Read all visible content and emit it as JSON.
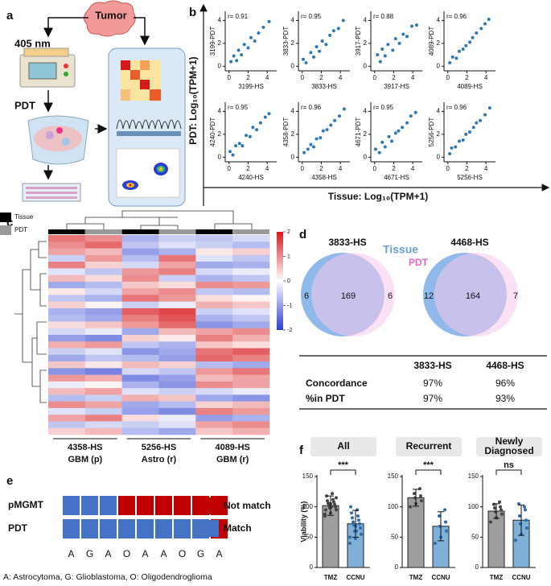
{
  "panel_a": {
    "letter": "a",
    "tumor": "Tumor",
    "laser": "405 nm",
    "step": "PDT"
  },
  "panel_b": {
    "letter": "b",
    "ylabel": "PDT: Log₁₀(TPM+1)",
    "xlabel": "Tissue: Log₁₀(TPM+1)",
    "chart_data": [
      {
        "type": "scatter",
        "r_label": "r= 0.91",
        "xlabel": "3199-HS",
        "ylabel": "3199-PDT",
        "color": "#2e78b7",
        "xlim": [
          -0.4,
          5
        ],
        "ylim": [
          -0.4,
          4.8
        ],
        "xticks": [
          0,
          2,
          4
        ],
        "yticks": [
          0,
          2,
          4
        ],
        "x": [
          0.2,
          0.5,
          0.8,
          1.0,
          1.3,
          1.6,
          2.0,
          2.3,
          2.7,
          3.1,
          3.6,
          4.2
        ],
        "y": [
          0.4,
          0.9,
          0.5,
          1.4,
          1.0,
          1.9,
          1.6,
          2.5,
          2.2,
          2.9,
          3.4,
          3.9
        ]
      },
      {
        "type": "scatter",
        "r_label": "r= 0.95",
        "xlabel": "3833-HS",
        "ylabel": "3833-PDT",
        "color": "#2e78b7",
        "xlim": [
          -0.4,
          5
        ],
        "ylim": [
          -0.4,
          4.8
        ],
        "xticks": [
          0,
          2,
          4
        ],
        "yticks": [
          0,
          2,
          4
        ],
        "x": [
          0.1,
          0.4,
          0.9,
          1.2,
          1.5,
          1.8,
          2.1,
          2.5,
          2.9,
          3.3,
          3.8,
          4.3
        ],
        "y": [
          0.6,
          0.3,
          1.2,
          0.8,
          1.7,
          1.3,
          2.2,
          1.9,
          2.7,
          3.1,
          3.3,
          4.0
        ]
      },
      {
        "type": "scatter",
        "r_label": "r= 0.88",
        "xlabel": "3917-HS",
        "ylabel": "3917-PDT",
        "color": "#2e78b7",
        "xlim": [
          -0.4,
          5
        ],
        "ylim": [
          -0.4,
          4.8
        ],
        "xticks": [
          0,
          2,
          4
        ],
        "yticks": [
          0,
          2,
          4
        ],
        "x": [
          0.3,
          0.6,
          0.8,
          1.1,
          1.4,
          1.9,
          2.2,
          2.6,
          3.0,
          3.4,
          3.9,
          4.4
        ],
        "y": [
          1.0,
          0.4,
          1.5,
          0.9,
          1.9,
          1.4,
          2.4,
          2.0,
          2.8,
          2.6,
          3.5,
          3.6
        ]
      },
      {
        "type": "scatter",
        "r_label": "r= 0.96",
        "xlabel": "4089-HS",
        "ylabel": "4089-PDT",
        "color": "#2e78b7",
        "xlim": [
          -0.4,
          5
        ],
        "ylim": [
          -0.4,
          4.8
        ],
        "xticks": [
          0,
          2,
          4
        ],
        "yticks": [
          0,
          2,
          4
        ],
        "x": [
          0.2,
          0.5,
          0.9,
          1.2,
          1.6,
          1.9,
          2.3,
          2.6,
          3.0,
          3.5,
          3.9,
          4.3
        ],
        "y": [
          0.3,
          0.8,
          0.7,
          1.3,
          1.5,
          1.8,
          2.1,
          2.5,
          2.9,
          3.3,
          3.7,
          4.1
        ]
      },
      {
        "type": "scatter",
        "r_label": "r= 0.95",
        "xlabel": "4240-HS",
        "ylabel": "4240-PDT",
        "color": "#2e78b7",
        "xlim": [
          -0.4,
          5
        ],
        "ylim": [
          -0.4,
          4.8
        ],
        "xticks": [
          0,
          2,
          4
        ],
        "yticks": [
          0,
          2,
          4
        ],
        "x": [
          0.1,
          0.4,
          0.7,
          1.1,
          1.4,
          1.8,
          2.2,
          2.5,
          2.9,
          3.3,
          3.8,
          4.2
        ],
        "y": [
          0.5,
          0.2,
          1.0,
          1.2,
          1.0,
          1.9,
          1.8,
          2.6,
          2.4,
          3.0,
          3.5,
          3.8
        ]
      },
      {
        "type": "scatter",
        "r_label": "r= 0.96",
        "xlabel": "4358-HS",
        "ylabel": "4358-PDT",
        "color": "#2e78b7",
        "xlim": [
          -0.4,
          5
        ],
        "ylim": [
          -0.4,
          4.8
        ],
        "xticks": [
          0,
          2,
          4
        ],
        "yticks": [
          0,
          2,
          4
        ],
        "x": [
          0.2,
          0.6,
          0.9,
          1.2,
          1.5,
          1.9,
          2.2,
          2.6,
          3.0,
          3.4,
          3.9,
          4.4
        ],
        "y": [
          0.4,
          0.7,
          1.1,
          0.9,
          1.6,
          1.7,
          2.3,
          2.4,
          2.8,
          3.2,
          3.6,
          4.2
        ]
      },
      {
        "type": "scatter",
        "r_label": "r= 0.95",
        "xlabel": "4671-HS",
        "ylabel": "4671-PDT",
        "color": "#2e78b7",
        "xlim": [
          -0.4,
          5
        ],
        "ylim": [
          -0.4,
          4.8
        ],
        "xticks": [
          0,
          2,
          4
        ],
        "yticks": [
          0,
          2,
          4
        ],
        "x": [
          0.1,
          0.5,
          0.8,
          1.1,
          1.5,
          1.8,
          2.2,
          2.5,
          2.9,
          3.4,
          3.8,
          4.3
        ],
        "y": [
          0.7,
          0.4,
          1.3,
          0.9,
          1.8,
          1.4,
          2.1,
          2.3,
          2.6,
          3.0,
          3.6,
          3.9
        ]
      },
      {
        "type": "scatter",
        "r_label": "r= 0.96",
        "xlabel": "5256-HS",
        "ylabel": "5256-PDT",
        "color": "#2e78b7",
        "xlim": [
          -0.4,
          5
        ],
        "ylim": [
          -0.4,
          4.8
        ],
        "xticks": [
          0,
          2,
          4
        ],
        "yticks": [
          0,
          2,
          4
        ],
        "x": [
          0.2,
          0.4,
          0.8,
          1.2,
          1.6,
          1.9,
          2.3,
          2.7,
          3.0,
          3.4,
          3.9,
          4.4
        ],
        "y": [
          0.3,
          0.8,
          0.9,
          1.4,
          1.5,
          2.0,
          2.2,
          2.6,
          3.0,
          3.2,
          3.7,
          4.3
        ]
      }
    ]
  },
  "panel_c": {
    "letter": "c",
    "legend": [
      {
        "name": "Tissue",
        "color": "#000000"
      },
      {
        "name": "PDT",
        "color": "#999999"
      }
    ],
    "chart_data": {
      "type": "heatmap",
      "columns": [
        "Tissue",
        "PDT",
        "Tissue",
        "PDT",
        "Tissue",
        "PDT"
      ],
      "clim": [
        -2,
        2
      ],
      "cticks": [
        2,
        1,
        0,
        -1,
        -2
      ],
      "groups": [
        {
          "sample": "4358-HS",
          "label": "GBM (p)"
        },
        {
          "sample": "5256-HS",
          "label": "Astro (r)"
        },
        {
          "sample": "4089-HS",
          "label": "GBM (r)"
        }
      ],
      "values": [
        [
          1.2,
          1.0,
          -0.8,
          -0.5,
          -0.6,
          -0.4
        ],
        [
          1.0,
          1.3,
          -0.6,
          -0.3,
          -0.5,
          -0.7
        ],
        [
          0.8,
          0.6,
          -1.0,
          -0.8,
          0.2,
          0.4
        ],
        [
          -0.5,
          0.9,
          -0.7,
          1.2,
          -0.3,
          -0.6
        ],
        [
          1.1,
          0.4,
          -0.4,
          0.8,
          -0.9,
          -0.8
        ],
        [
          -0.3,
          -0.6,
          0.9,
          1.1,
          -0.4,
          -0.2
        ],
        [
          0.6,
          0.3,
          1.0,
          -0.5,
          -0.8,
          -0.6
        ],
        [
          -0.9,
          -0.7,
          0.5,
          0.3,
          1.0,
          0.9
        ],
        [
          0.2,
          -0.4,
          0.8,
          1.0,
          -0.6,
          -0.7
        ],
        [
          -0.6,
          -0.8,
          1.2,
          0.9,
          0.3,
          0.1
        ],
        [
          0.4,
          0.1,
          -0.5,
          -0.2,
          0.7,
          0.5
        ],
        [
          -0.8,
          -1.0,
          1.4,
          1.6,
          -0.5,
          -0.3
        ],
        [
          -0.7,
          -0.9,
          1.1,
          1.5,
          -0.8,
          -0.6
        ],
        [
          0.3,
          0.5,
          0.9,
          1.3,
          -1.1,
          -0.9
        ],
        [
          -0.4,
          -0.2,
          -0.9,
          0.6,
          0.8,
          1.0
        ],
        [
          -1.0,
          -1.2,
          0.4,
          0.2,
          1.1,
          0.7
        ],
        [
          0.7,
          0.9,
          -0.6,
          -0.8,
          0.5,
          0.3
        ],
        [
          -0.5,
          -0.3,
          -1.1,
          -0.9,
          1.2,
          1.4
        ],
        [
          -0.9,
          -0.6,
          -0.7,
          -1.0,
          1.3,
          1.1
        ],
        [
          0.5,
          0.2,
          0.6,
          0.4,
          -0.7,
          -0.9
        ],
        [
          -1.1,
          -1.3,
          -0.4,
          -0.6,
          0.9,
          1.2
        ],
        [
          0.9,
          0.7,
          -1.2,
          -1.0,
          0.6,
          0.8
        ],
        [
          -0.2,
          0.1,
          -0.8,
          -1.1,
          1.0,
          0.8
        ],
        [
          0.6,
          0.8,
          -0.3,
          -0.5,
          -0.4,
          -0.2
        ],
        [
          -0.7,
          -0.5,
          0.7,
          0.5,
          -0.9,
          -1.1
        ],
        [
          1.0,
          0.8,
          -0.9,
          -0.7,
          0.4,
          0.6
        ],
        [
          -0.3,
          -0.5,
          -1.0,
          -1.2,
          1.1,
          0.9
        ],
        [
          0.8,
          1.1,
          0.3,
          -0.2,
          -1.0,
          -0.8
        ],
        [
          -0.6,
          -0.4,
          -0.5,
          -0.3,
          0.8,
          1.0
        ],
        [
          0.4,
          0.6,
          -0.7,
          -0.9,
          0.5,
          0.7
        ]
      ]
    }
  },
  "panel_d": {
    "letter": "d",
    "tissue": "Tissue",
    "pdt": "PDT",
    "venns": [
      {
        "sample": "3833-HS",
        "only_tissue": 6,
        "both": 169,
        "only_pdt": 6
      },
      {
        "sample": "4468-HS",
        "only_tissue": 12,
        "both": 164,
        "only_pdt": 7
      }
    ],
    "table": {
      "columns": [
        "3833-HS",
        "4468-HS"
      ],
      "rows": [
        [
          "Concordance",
          "97%",
          "96%"
        ],
        [
          "%in PDT",
          "97%",
          "93%"
        ]
      ]
    }
  },
  "panel_e": {
    "letter": "e",
    "legend": [
      {
        "name": "Not match",
        "color": "#c00000"
      },
      {
        "name": "Match",
        "color": "#4472c4"
      }
    ],
    "rows": [
      {
        "label": "pMGMT",
        "cells": [
          "Match",
          "Match",
          "Match",
          "Not match",
          "Not match",
          "Not match",
          "Not match",
          "Not match",
          "Not match"
        ]
      },
      {
        "label": "PDT",
        "cells": [
          "Match",
          "Match",
          "Match",
          "Match",
          "Match",
          "Match",
          "Match",
          "Match",
          "Not match"
        ]
      }
    ],
    "letters": [
      "A",
      "G",
      "A",
      "O",
      "A",
      "A",
      "O",
      "G",
      "A"
    ],
    "footnote": "A: Astrocytoma, G: Glioblastoma, O: Oligodendroglioma"
  },
  "panel_f": {
    "letter": "f",
    "ylabel": "Viability (%)",
    "ylim": [
      0,
      150
    ],
    "yticks": [
      0,
      50,
      100,
      150
    ],
    "colors": [
      "#9e9e9e",
      "#7fb0d8"
    ],
    "point_colors": [
      "#444444",
      "#2b6cb0"
    ],
    "chart_data": [
      {
        "type": "bar",
        "title": [
          "All"
        ],
        "significance": "***",
        "categories": [
          "TMZ",
          "CCNU"
        ],
        "values": [
          102,
          72
        ],
        "errors": [
          16,
          22
        ],
        "points": [
          [
            85,
            90,
            95,
            98,
            100,
            102,
            104,
            106,
            108,
            110,
            112,
            118,
            122,
            95,
            100,
            88,
            105,
            115
          ],
          [
            40,
            48,
            55,
            60,
            65,
            70,
            72,
            75,
            78,
            82,
            85,
            90,
            95,
            100,
            60,
            50,
            68
          ]
        ]
      },
      {
        "type": "bar",
        "title": [
          "Recurrent"
        ],
        "significance": "***",
        "categories": [
          "TMZ",
          "CCNU"
        ],
        "values": [
          115,
          68
        ],
        "errors": [
          14,
          24
        ],
        "points": [
          [
            100,
            105,
            110,
            115,
            118,
            122,
            130
          ],
          [
            40,
            50,
            60,
            68,
            75,
            85,
            95
          ]
        ]
      },
      {
        "type": "bar",
        "title": [
          "Newly",
          "Diagnosed"
        ],
        "significance": "ns",
        "categories": [
          "TMZ",
          "CCNU"
        ],
        "values": [
          93,
          78
        ],
        "errors": [
          12,
          25
        ],
        "points": [
          [
            75,
            82,
            88,
            92,
            95,
            98,
            100,
            104,
            108
          ],
          [
            45,
            55,
            65,
            72,
            78,
            85,
            95,
            105,
            100
          ]
        ]
      }
    ]
  }
}
